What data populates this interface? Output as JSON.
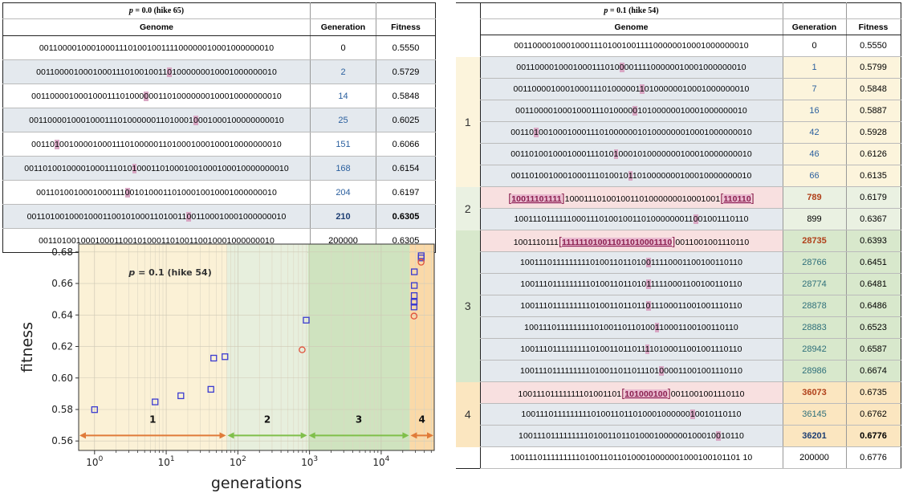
{
  "left_table": {
    "caption_p": "p",
    "caption_rest": " = 0.0 (hike 65)",
    "headers": [
      "Genome",
      "Generation",
      "Fitness"
    ],
    "rows": [
      {
        "pre": "00110000100010001110100100111100000010001000000010",
        "mut": "",
        "post": "",
        "generation": "0",
        "fitness": "0.5550",
        "shade": false,
        "gen_style": "plain",
        "fit_bold": false
      },
      {
        "pre": "0011000010001000111010010011",
        "mut": "0",
        "post": "1000000010001000000010",
        "generation": "2",
        "fitness": "0.5729",
        "shade": true,
        "gen_style": "blue",
        "fit_bold": false
      },
      {
        "pre": "001100001000100011101000",
        "mut": "0",
        "post": "0011010000000100010000000010",
        "generation": "14",
        "fitness": "0.5848",
        "shade": false,
        "gen_style": "blue",
        "fit_bold": false
      },
      {
        "pre": "00110000100010001110100000011010001",
        "mut": "0",
        "post": "001000100000000010",
        "generation": "25",
        "fitness": "0.6025",
        "shade": true,
        "gen_style": "blue",
        "fit_bold": false
      },
      {
        "pre": "00110",
        "mut": "1",
        "post": "00100001000111010000011010001000100010000000010",
        "generation": "151",
        "fitness": "0.6066",
        "shade": false,
        "gen_style": "blue",
        "fit_bold": false
      },
      {
        "pre": "00110100100001000111010",
        "mut": "1",
        "post": "00011010001001000100010000000010",
        "generation": "168",
        "fitness": "0.6154",
        "shade": true,
        "gen_style": "blue",
        "fit_bold": false
      },
      {
        "pre": "0011010010001000111",
        "mut": "0",
        "post": "0101000110100010010001000000010",
        "generation": "204",
        "fitness": "0.6197",
        "shade": false,
        "gen_style": "blue",
        "fit_bold": false
      },
      {
        "pre": "0011010010001000110010100011010011",
        "mut": "0",
        "post": "01100010001000000010",
        "generation": "210",
        "fitness": "0.6305",
        "shade": true,
        "gen_style": "bold",
        "fit_bold": true
      },
      {
        "pre": "00110100100010001100101000110100110010001000000010",
        "mut": "",
        "post": "",
        "generation": "200000",
        "fitness": "0.6305",
        "shade": false,
        "gen_style": "plain",
        "fit_bold": false
      }
    ]
  },
  "right_table": {
    "caption_p": "p",
    "caption_rest": " = 0.1 (hike 54)",
    "headers": [
      "Genome",
      "Generation",
      "Fitness"
    ],
    "phase_labels": [
      "1",
      "2",
      "3",
      "4"
    ],
    "rows": [
      {
        "phase": 0,
        "kind": "white",
        "parts": [
          [
            "t",
            "00110000100010001110100100111100000010001000000010"
          ]
        ],
        "generation": "0",
        "fitness": "0.5550",
        "gen_style": "plain",
        "fit_bold": false
      },
      {
        "phase": 1,
        "kind": "shaded",
        "parts": [
          [
            "t",
            "0011000010001000111010"
          ],
          [
            "m",
            "0"
          ],
          [
            "t",
            "00111100000010001000000010"
          ]
        ],
        "generation": "1",
        "fitness": "0.5799",
        "gen_style": "blue",
        "fit_bold": false
      },
      {
        "phase": 1,
        "kind": "shaded",
        "parts": [
          [
            "t",
            "001100001000100011101000001"
          ],
          [
            "m",
            "1"
          ],
          [
            "t",
            "0100000010001000000010"
          ]
        ],
        "generation": "7",
        "fitness": "0.5848",
        "gen_style": "blue",
        "fit_bold": false
      },
      {
        "phase": 1,
        "kind": "shaded",
        "parts": [
          [
            "t",
            "0011000010001000111010000"
          ],
          [
            "m",
            "0"
          ],
          [
            "t",
            "10100000010001000000010"
          ]
        ],
        "generation": "16",
        "fitness": "0.5887",
        "gen_style": "blue",
        "fit_bold": false
      },
      {
        "phase": 1,
        "kind": "shaded",
        "parts": [
          [
            "t",
            "00110"
          ],
          [
            "m",
            "1"
          ],
          [
            "t",
            "001000100011101000000101000000010001000000010"
          ]
        ],
        "generation": "42",
        "fitness": "0.5928",
        "gen_style": "blue",
        "fit_bold": false
      },
      {
        "phase": 1,
        "kind": "shaded",
        "parts": [
          [
            "t",
            "0011010010001000111010"
          ],
          [
            "m",
            "1"
          ],
          [
            "t",
            "0001010000000100010000000010"
          ]
        ],
        "generation": "46",
        "fitness": "0.6126",
        "gen_style": "blue",
        "fit_bold": false
      },
      {
        "phase": 1,
        "kind": "shaded",
        "parts": [
          [
            "t",
            "0011010010001000111010010"
          ],
          [
            "m",
            "1"
          ],
          [
            "t",
            "1010000000100010000000010"
          ]
        ],
        "generation": "66",
        "fitness": "0.6135",
        "gen_style": "blue",
        "fit_bold": false
      },
      {
        "phase": 2,
        "kind": "pink",
        "parts": [
          [
            "h",
            "10011101111"
          ],
          [
            "t",
            "100011101001001101000000010001001"
          ],
          [
            "h",
            "110110"
          ]
        ],
        "generation": "789",
        "fitness": "0.6179",
        "gen_style": "red",
        "fit_bold": false
      },
      {
        "phase": 2,
        "kind": "shaded",
        "parts": [
          [
            "t",
            "100111011111100011101001001101000000011"
          ],
          [
            "m",
            "0"
          ],
          [
            "t",
            "01001110110"
          ]
        ],
        "generation": "899",
        "fitness": "0.6367",
        "gen_style": "plain",
        "fit_bold": false
      },
      {
        "phase": 3,
        "kind": "pink",
        "parts": [
          [
            "t",
            "1001110111"
          ],
          [
            "h",
            "111111010011011010001110"
          ],
          [
            "t",
            "0011001001110110"
          ]
        ],
        "generation": "28735",
        "fitness": "0.6393",
        "gen_style": "red",
        "fit_bold": false
      },
      {
        "phase": 3,
        "kind": "shaded",
        "parts": [
          [
            "t",
            "1001110111111111010011011010"
          ],
          [
            "m",
            "0"
          ],
          [
            "t",
            "11110001100100110110"
          ]
        ],
        "generation": "28766",
        "fitness": "0.6451",
        "gen_style": "teal",
        "fit_bold": false
      },
      {
        "phase": 3,
        "kind": "shaded",
        "parts": [
          [
            "t",
            "1001110111111111010011011010"
          ],
          [
            "m",
            "1"
          ],
          [
            "t",
            "11110001100100110110"
          ]
        ],
        "generation": "28774",
        "fitness": "0.6481",
        "gen_style": "teal",
        "fit_bold": false
      },
      {
        "phase": 3,
        "kind": "shaded",
        "parts": [
          [
            "t",
            "1001110111111111010011011011"
          ],
          [
            "m",
            "0"
          ],
          [
            "t",
            "11100011001001110110"
          ]
        ],
        "generation": "28878",
        "fitness": "0.6486",
        "gen_style": "teal",
        "fit_bold": false
      },
      {
        "phase": 3,
        "kind": "shaded",
        "parts": [
          [
            "t",
            "10011101111111110100110110100"
          ],
          [
            "m",
            "1"
          ],
          [
            "t",
            "10001100100110110"
          ]
        ],
        "generation": "28883",
        "fitness": "0.6523",
        "gen_style": "teal",
        "fit_bold": false
      },
      {
        "phase": 3,
        "kind": "shaded",
        "parts": [
          [
            "t",
            "1001110111111111010011011011"
          ],
          [
            "m",
            "1"
          ],
          [
            "t",
            "10100011001001110110"
          ]
        ],
        "generation": "28942",
        "fitness": "0.6587",
        "gen_style": "teal",
        "fit_bold": false
      },
      {
        "phase": 3,
        "kind": "shaded",
        "parts": [
          [
            "t",
            "1001110111111111010011011011101"
          ],
          [
            "m",
            "0"
          ],
          [
            "t",
            "00011001001110110"
          ]
        ],
        "generation": "28986",
        "fitness": "0.6674",
        "gen_style": "teal",
        "fit_bold": false
      },
      {
        "phase": 4,
        "kind": "pink",
        "parts": [
          [
            "t",
            "10011101111111101001101"
          ],
          [
            "h",
            "101000100"
          ],
          [
            "t",
            "0011001001110110"
          ]
        ],
        "generation": "36073",
        "fitness": "0.6735",
        "gen_style": "red",
        "fit_bold": false
      },
      {
        "phase": 4,
        "kind": "shaded",
        "parts": [
          [
            "t",
            "1001110111111111010011011010001000000"
          ],
          [
            "m",
            "1"
          ],
          [
            "t",
            "0010110110"
          ]
        ],
        "generation": "36145",
        "fitness": "0.6762",
        "gen_style": "teal",
        "fit_bold": false
      },
      {
        "phase": 4,
        "kind": "shaded",
        "parts": [
          [
            "t",
            "1001110111111111010011011010001000000100010"
          ],
          [
            "m",
            "0"
          ],
          [
            "t",
            "10110"
          ]
        ],
        "generation": "36201",
        "fitness": "0.6776",
        "gen_style": "bold",
        "fit_bold": true
      },
      {
        "phase": 0,
        "kind": "white",
        "parts": [
          [
            "t",
            "10011101111111110100110110100010000001000100101101 10"
          ]
        ],
        "generation": "200000",
        "fitness": "0.6776",
        "gen_style": "plain",
        "fit_bold": false
      }
    ]
  },
  "chart_data": {
    "type": "scatter",
    "title": "",
    "annotation_p": "p",
    "annotation_rest": " = 0.1 (hike 54)",
    "xlabel": "generations",
    "ylabel": "fitness",
    "x_scale": "log",
    "xlim": [
      0.6,
      55000
    ],
    "ylim": [
      0.554,
      0.685
    ],
    "x_ticks": [
      {
        "base": "10",
        "exp": "0",
        "value": 1
      },
      {
        "base": "10",
        "exp": "1",
        "value": 10
      },
      {
        "base": "10",
        "exp": "2",
        "value": 100
      },
      {
        "base": "10",
        "exp": "3",
        "value": 1000
      },
      {
        "base": "10",
        "exp": "4",
        "value": 10000
      }
    ],
    "y_ticks": [
      "0.56",
      "0.58",
      "0.60",
      "0.62",
      "0.64",
      "0.66",
      "0.68"
    ],
    "regions": [
      {
        "label": "1",
        "from": 0.6,
        "to": 70,
        "color": "#fbf1d6",
        "arrow_color": "#e07b39"
      },
      {
        "label": "2",
        "from": 70,
        "to": 950,
        "color": "#e7efdd",
        "arrow_color": "#7fbf4a"
      },
      {
        "label": "3",
        "from": 950,
        "to": 25000,
        "color": "#cfe3bf",
        "arrow_color": "#7fbf4a"
      },
      {
        "label": "4",
        "from": 25000,
        "to": 55000,
        "color": "#fad9a8",
        "arrow_color": "#e07b39"
      }
    ],
    "series": [
      {
        "marker": "square",
        "color": "#3b3bd0",
        "points": [
          [
            1,
            0.5799
          ],
          [
            7,
            0.5848
          ],
          [
            16,
            0.5887
          ],
          [
            42,
            0.5928
          ],
          [
            46,
            0.6126
          ],
          [
            66,
            0.6135
          ],
          [
            899,
            0.6367
          ],
          [
            28766,
            0.6451
          ],
          [
            28774,
            0.6481
          ],
          [
            28878,
            0.6486
          ],
          [
            28883,
            0.6523
          ],
          [
            28942,
            0.6587
          ],
          [
            28986,
            0.6674
          ],
          [
            36145,
            0.6762
          ],
          [
            36201,
            0.6776
          ]
        ]
      },
      {
        "marker": "circle",
        "color": "#e0503a",
        "points": [
          [
            789,
            0.6179
          ],
          [
            28735,
            0.6393
          ],
          [
            36073,
            0.6735
          ]
        ]
      }
    ]
  }
}
